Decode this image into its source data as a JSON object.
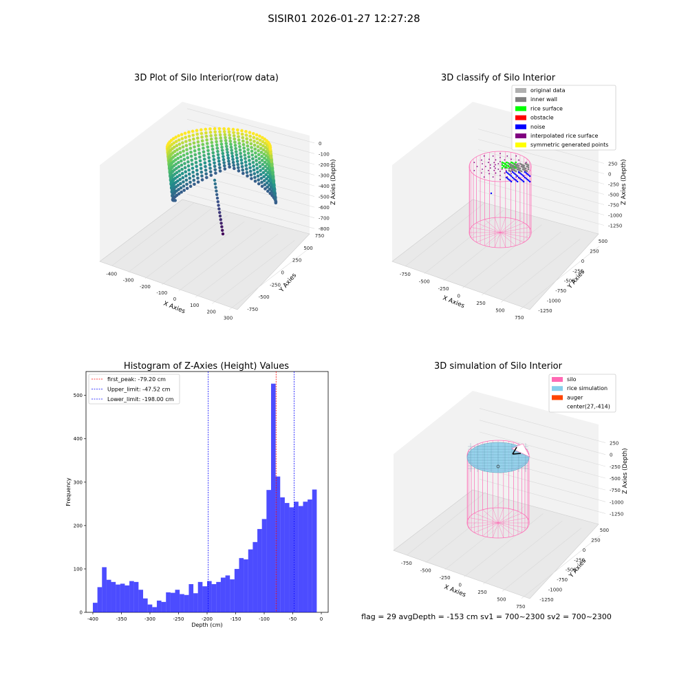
{
  "suptitle": "SISIR01 2026-01-27 12:27:28",
  "footer": "flag = 29  avgDepth = -153 cm sv1 = 700~2300  sv2 = 700~2300",
  "panels": {
    "raw": {
      "title": "3D Plot of Silo Interior(row data)",
      "xlabel": "X Axies",
      "ylabel": "Y Axies",
      "zlabel": "Z Axies (Depth)",
      "xticks": [
        "-400",
        "-300",
        "-200",
        "-100",
        "0",
        "100",
        "200",
        "300"
      ],
      "yticks": [
        "-750",
        "-500",
        "-250",
        "0",
        "250",
        "500",
        "750"
      ],
      "zticks": [
        "0",
        "-100",
        "-200",
        "-300",
        "-400",
        "-500",
        "-600",
        "-700",
        "-800"
      ]
    },
    "classify": {
      "title": "3D classify of Silo Interior",
      "xlabel": "X Axies",
      "ylabel": "Y Axies",
      "zlabel": "Z Axies (Depth)",
      "xticks": [
        "-750",
        "-500",
        "-250",
        "0",
        "250",
        "500",
        "750"
      ],
      "yticks": [
        "-1250",
        "-1000",
        "-750",
        "-500",
        "-250",
        "0",
        "250",
        "500"
      ],
      "zticks": [
        "250",
        "0",
        "-250",
        "-500",
        "-750",
        "-1000",
        "-1250"
      ],
      "legend": [
        {
          "label": "original data",
          "color": "#b0b0b0"
        },
        {
          "label": "inner wall",
          "color": "#808080"
        },
        {
          "label": "rice surface",
          "color": "#00ff00"
        },
        {
          "label": "obstacle",
          "color": "#ff0000"
        },
        {
          "label": "noise",
          "color": "#0000ff"
        },
        {
          "label": "interpolated rice surface",
          "color": "#800080"
        },
        {
          "label": "symmetric generated points",
          "color": "#ffff00"
        }
      ]
    },
    "simulation": {
      "title": "3D simulation of Silo Interior",
      "xlabel": "X Axies",
      "ylabel": "Y Axies",
      "zlabel": "Z Axies (Depth)",
      "xticks": [
        "-750",
        "-500",
        "-250",
        "0",
        "250",
        "500",
        "750"
      ],
      "yticks": [
        "-1250",
        "-1000",
        "-750",
        "-500",
        "-250",
        "0",
        "250",
        "500"
      ],
      "zticks": [
        "250",
        "0",
        "-250",
        "-500",
        "-750",
        "-1000",
        "-1250"
      ],
      "legend": [
        {
          "label": "silo",
          "color": "#ff69b4"
        },
        {
          "label": "rice simulation",
          "color": "#87ceeb"
        },
        {
          "label": "auger",
          "color": "#ff4500"
        },
        {
          "label": "center(27,-414)",
          "color": "#ffffff"
        }
      ]
    }
  },
  "chart_data": {
    "type": "bar",
    "title": "Histogram of Z-Axies (Height) Values",
    "xlabel": "Depth (cm)",
    "ylabel": "Frequency",
    "xlim": [
      -412,
      12
    ],
    "ylim": [
      0,
      555
    ],
    "xticks": [
      -400,
      -350,
      -300,
      -250,
      -200,
      -150,
      -100,
      -50,
      0
    ],
    "yticks": [
      0,
      100,
      200,
      300,
      400,
      500
    ],
    "bar_color": "#0000ff",
    "bin_start": -400,
    "bin_width": 8,
    "values": [
      22,
      58,
      104,
      75,
      70,
      64,
      66,
      62,
      72,
      70,
      52,
      32,
      18,
      12,
      27,
      24,
      46,
      45,
      52,
      42,
      40,
      65,
      44,
      70,
      60,
      72,
      65,
      70,
      80,
      85,
      76,
      100,
      125,
      122,
      145,
      162,
      192,
      215,
      282,
      527,
      313,
      265,
      252,
      242,
      255,
      245,
      255,
      260,
      283
    ],
    "lines": [
      {
        "label": "first_peak: -79.20 cm",
        "x": -79.2,
        "color": "#ff0000"
      },
      {
        "label": "Upper_limit: -47.52 cm",
        "x": -47.52,
        "color": "#0000ff"
      },
      {
        "label": "Lower_limit: -198.00 cm",
        "x": -198.0,
        "color": "#0000ff"
      }
    ],
    "legend_position": "top-left"
  }
}
